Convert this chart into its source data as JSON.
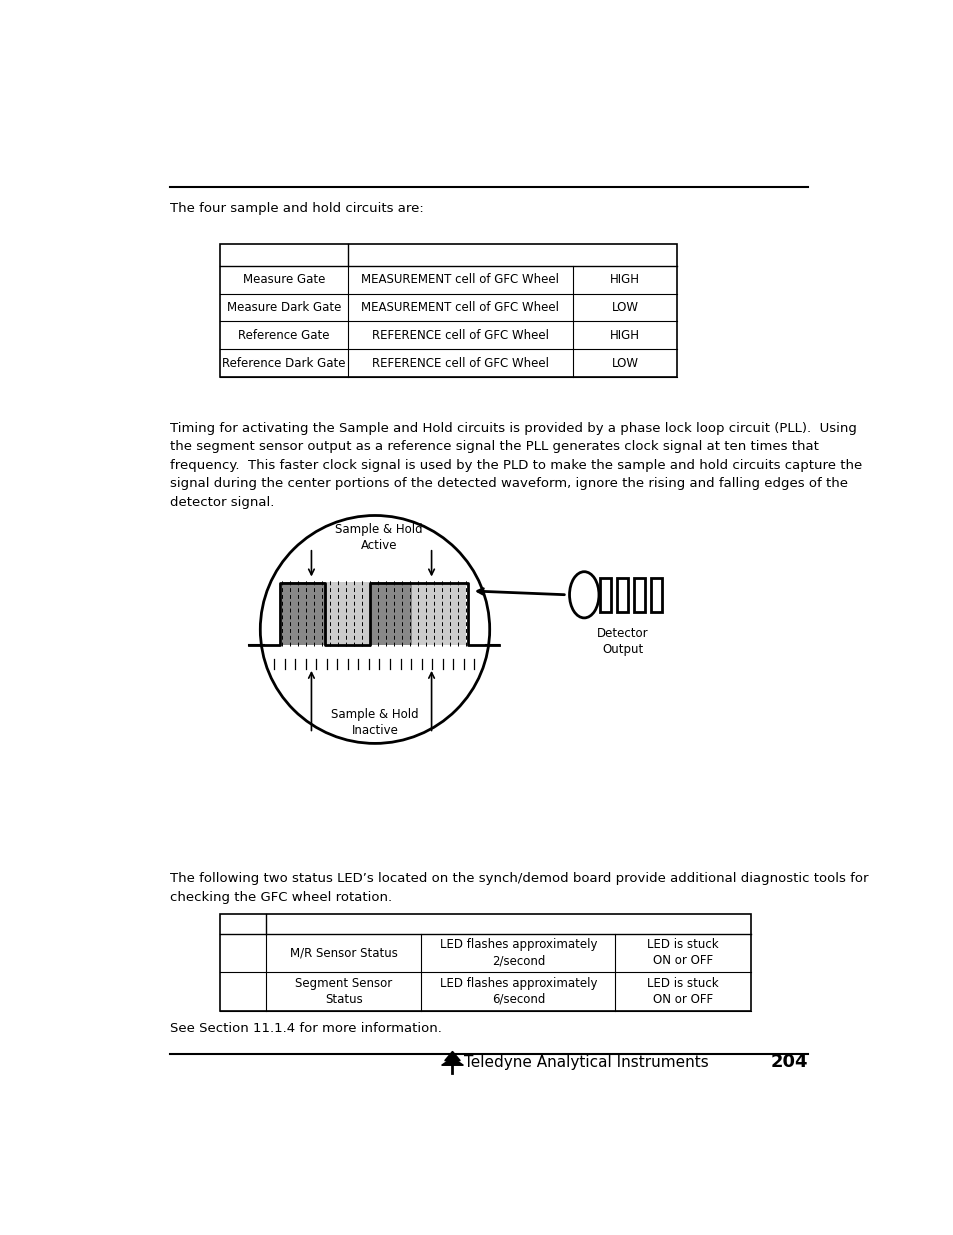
{
  "page_number": "204",
  "footer_text": "Teledyne Analytical Instruments",
  "text_intro1": "The four sample and hold circuits are:",
  "table1_rows": [
    [
      "Measure Gate",
      "MEASUREMENT cell of GFC Wheel",
      "HIGH"
    ],
    [
      "Measure Dark Gate",
      "MEASUREMENT cell of GFC Wheel",
      "LOW"
    ],
    [
      "Reference Gate",
      "REFERENCE cell of GFC Wheel",
      "HIGH"
    ],
    [
      "Reference Dark Gate",
      "REFERENCE cell of GFC Wheel",
      "LOW"
    ]
  ],
  "paragraph1": "Timing for activating the Sample and Hold circuits is provided by a phase lock loop circuit (PLL).  Using\nthe segment sensor output as a reference signal the PLL generates clock signal at ten times that\nfrequency.  This faster clock signal is used by the PLD to make the sample and hold circuits capture the\nsignal during the center portions of the detected waveform, ignore the rising and falling edges of the\ndetector signal.",
  "paragraph2": "The following two status LED’s located on the synch/demod board provide additional diagnostic tools for\nchecking the GFC wheel rotation.",
  "table2_rows": [
    [
      "",
      "M/R Sensor Status",
      "LED flashes approximately\n2/second",
      "LED is stuck\nON or OFF"
    ],
    [
      "",
      "Segment Sensor\nStatus",
      "LED flashes approximately\n6/second",
      "LED is stuck\nON or OFF"
    ]
  ],
  "see_section": "See Section 11.1.4 for more information.",
  "bg_color": "#ffffff",
  "text_color": "#000000"
}
